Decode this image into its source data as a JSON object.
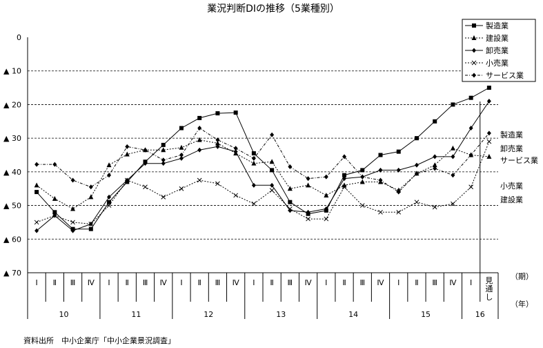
{
  "chart_data": {
    "type": "line",
    "title": "業況判断DIの推移（5業種別）",
    "ylim": [
      -70,
      0
    ],
    "yticks": [
      {
        "value": 0,
        "label": "0"
      },
      {
        "value": -10,
        "label": "▲ 10"
      },
      {
        "value": -20,
        "label": "▲ 20"
      },
      {
        "value": -30,
        "label": "▲ 30"
      },
      {
        "value": -40,
        "label": "▲ 40"
      },
      {
        "value": -50,
        "label": "▲ 50"
      },
      {
        "value": -60,
        "label": "▲ 60"
      },
      {
        "value": -70,
        "label": "▲ 70"
      }
    ],
    "grid": true,
    "legend_position": "top-right",
    "categories": [
      "Ⅰ",
      "Ⅱ",
      "Ⅲ",
      "Ⅳ",
      "Ⅰ",
      "Ⅱ",
      "Ⅲ",
      "Ⅳ",
      "Ⅰ",
      "Ⅱ",
      "Ⅲ",
      "Ⅳ",
      "Ⅰ",
      "Ⅱ",
      "Ⅲ",
      "Ⅳ",
      "Ⅰ",
      "Ⅱ",
      "Ⅲ",
      "Ⅳ",
      "Ⅰ",
      "Ⅱ",
      "Ⅲ",
      "Ⅳ",
      "Ⅰ",
      "見通し"
    ],
    "years": [
      {
        "label": "10",
        "start": 0,
        "end": 3
      },
      {
        "label": "11",
        "start": 4,
        "end": 7
      },
      {
        "label": "12",
        "start": 8,
        "end": 11
      },
      {
        "label": "13",
        "start": 12,
        "end": 15
      },
      {
        "label": "14",
        "start": 16,
        "end": 19
      },
      {
        "label": "15",
        "start": 20,
        "end": 23
      },
      {
        "label": "16",
        "start": 24,
        "end": 25
      }
    ],
    "period_label": "（期）",
    "year_label": "（年）",
    "forecast_index": 25,
    "series": [
      {
        "name": "製造業",
        "marker": "square",
        "dash": "solid",
        "end_label": "製造業",
        "values": [
          -46,
          -52,
          -57,
          -57,
          -49,
          -43,
          -37,
          -32,
          -27,
          -24,
          -22.6,
          -22.4,
          -34.5,
          -39.5,
          -49,
          -52.5,
          -51.5,
          -41,
          -39.5,
          -35,
          -34,
          -30,
          -25,
          -20,
          -18,
          -15
        ]
      },
      {
        "name": "建設業",
        "marker": "triangle",
        "dash": "dotted",
        "end_label": "建設業",
        "values": [
          -44,
          -48,
          -51,
          -47.5,
          -38,
          -34.8,
          -33.5,
          -33.5,
          -32.8,
          -30.5,
          -31.5,
          -34.5,
          -37.5,
          -37,
          -45,
          -44,
          -47,
          -44,
          -43,
          -43,
          -45.5,
          -40.5,
          -38,
          -33,
          -35,
          -35.5
        ]
      },
      {
        "name": "卸売業",
        "marker": "diamond",
        "dash": "solid",
        "end_label": "卸売業",
        "values": [
          -57.5,
          -53,
          -57.5,
          -55.5,
          -47.5,
          -42.5,
          -37.5,
          -37.5,
          -36,
          -33.5,
          -32.5,
          -34,
          -44,
          -44,
          -51.5,
          -52,
          -51,
          -42,
          -41.5,
          -39.5,
          -39.5,
          -38,
          -35.5,
          -35.5,
          -27,
          -19
        ]
      },
      {
        "name": "小売業",
        "marker": "x",
        "dash": "dotted",
        "end_label": "小売業",
        "values": [
          -55,
          -53,
          -55,
          -55.5,
          -50,
          -42.5,
          -44.5,
          -47.5,
          -45,
          -42.5,
          -43.5,
          -47,
          -49.5,
          -45.5,
          -51,
          -54,
          -54,
          -44.5,
          -50,
          -52,
          -52,
          -49,
          -50.5,
          -49.5,
          -44.5,
          -31
        ]
      },
      {
        "name": "サービス業",
        "marker": "diamond",
        "dash": "dashdot",
        "end_label": "サービス業",
        "values": [
          -37.8,
          -37.8,
          -42.5,
          -44.5,
          -41,
          -32.5,
          -33.5,
          -36.5,
          -35,
          -27,
          -30.5,
          -33,
          -36,
          -29,
          -38.5,
          -42,
          -41.5,
          -35.5,
          -41.5,
          -42.5,
          -46,
          -40.5,
          -39,
          -41,
          -35,
          -28.5
        ]
      }
    ]
  },
  "source_note": "資料出所　中小企業庁「中小企業景況調査」"
}
